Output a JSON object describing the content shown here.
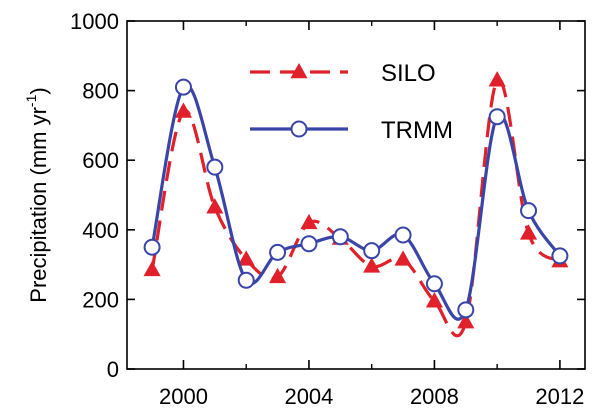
{
  "chart_data": {
    "type": "line",
    "x": [
      1999,
      2000,
      2001,
      2002,
      2003,
      2004,
      2005,
      2006,
      2007,
      2008,
      2009,
      2010,
      2011,
      2012
    ],
    "series": [
      {
        "name": "SILO",
        "values": [
          285,
          740,
          465,
          315,
          265,
          420,
          375,
          295,
          315,
          195,
          135,
          830,
          390,
          310
        ],
        "color": "#e0202a",
        "line": "dashed",
        "marker": "filled-triangle"
      },
      {
        "name": "TRMM",
        "values": [
          350,
          810,
          580,
          255,
          335,
          360,
          380,
          340,
          385,
          245,
          170,
          725,
          455,
          325
        ],
        "color": "#3a45a8",
        "line": "solid",
        "marker": "open-circle"
      }
    ],
    "ylabel": "Precipitation (mm yr",
    "ylabel_sup": "-1",
    "ylabel_end": ")",
    "xlim": [
      1998.2,
      2012.8
    ],
    "ylim": [
      0,
      1000
    ],
    "xticks": [
      2000,
      2004,
      2008,
      2012
    ],
    "xticks_minor": [
      2002,
      2006,
      2010
    ],
    "yticks": [
      0,
      200,
      400,
      600,
      800,
      1000
    ],
    "grid": false,
    "legend": "top-right"
  }
}
